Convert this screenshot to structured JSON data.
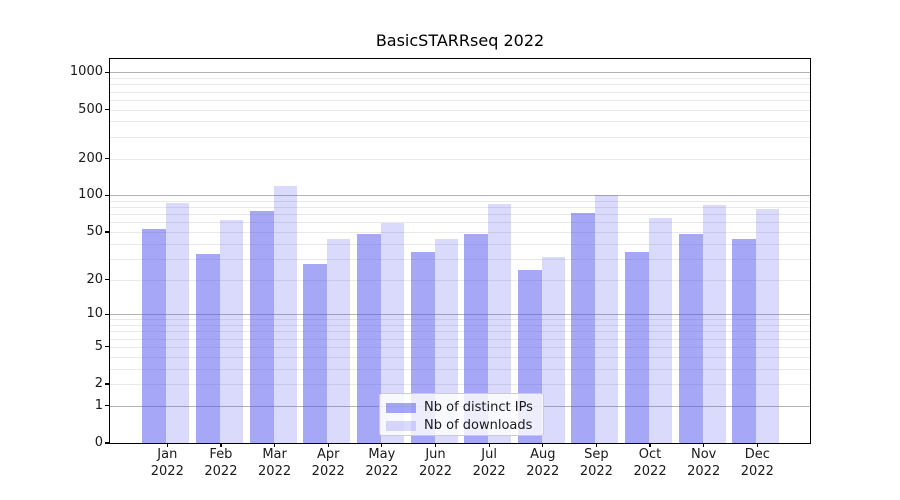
{
  "chart_data": {
    "type": "bar",
    "title": "BasicSTARRseq 2022",
    "categories": [
      "Jan 2022",
      "Feb 2022",
      "Mar 2022",
      "Apr 2022",
      "May 2022",
      "Jun 2022",
      "Jul 2022",
      "Aug 2022",
      "Sep 2022",
      "Oct 2022",
      "Nov 2022",
      "Dec 2022"
    ],
    "series": [
      {
        "name": "Nb of distinct IPs",
        "color": "#5050f0",
        "alpha": 0.5,
        "values": [
          53,
          33,
          74,
          27,
          48,
          34,
          48,
          24,
          72,
          34,
          48,
          44
        ]
      },
      {
        "name": "Nb of downloads",
        "color": "#5050f0",
        "alpha": 0.21,
        "values": [
          86,
          63,
          120,
          44,
          60,
          44,
          85,
          31,
          101,
          66,
          84,
          78
        ]
      }
    ],
    "xlabel": "",
    "ylabel": "",
    "yscale": "log1p",
    "ylim": [
      0,
      1284
    ],
    "y_ticks": [
      0,
      1,
      2,
      5,
      10,
      20,
      50,
      100,
      200,
      500,
      1000
    ],
    "gridlines_major": [
      1,
      10,
      100,
      1000
    ],
    "grid": true,
    "legend_position": "lower center"
  },
  "colors": {
    "bar_base": "#5050f0",
    "grid_major": "#b3b3b3",
    "grid_minor": "#e9e9e9",
    "spine": "#000000",
    "text": "#1a1a1a",
    "legend_border": "#cccccc"
  }
}
